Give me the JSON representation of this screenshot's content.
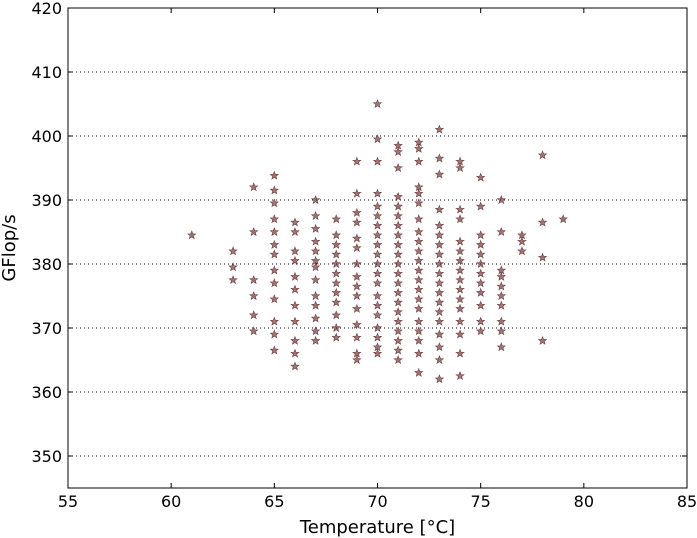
{
  "chart_data": {
    "type": "scatter",
    "title": "",
    "xlabel": "Temperature [°C]",
    "ylabel": "GFlop/s",
    "xlim": [
      55,
      85
    ],
    "ylim": [
      345,
      420
    ],
    "xticks": [
      55,
      60,
      65,
      70,
      75,
      80,
      85
    ],
    "yticks": [
      350,
      360,
      370,
      380,
      390,
      400,
      410,
      420
    ],
    "grid": "horizontal dotted",
    "marker": "star",
    "marker_color": "#5a1a1a",
    "series": [
      {
        "points": [
          [
            61,
            384.5
          ],
          [
            63,
            382.0
          ],
          [
            63,
            379.5
          ],
          [
            63,
            377.5
          ],
          [
            64,
            392.0
          ],
          [
            64,
            385.0
          ],
          [
            64,
            377.5
          ],
          [
            64,
            375.0
          ],
          [
            64,
            372.0
          ],
          [
            64,
            369.5
          ],
          [
            65,
            393.8
          ],
          [
            65,
            391.5
          ],
          [
            65,
            389.5
          ],
          [
            65,
            387.0
          ],
          [
            65,
            385.0
          ],
          [
            65,
            383.0
          ],
          [
            65,
            381.5
          ],
          [
            65,
            379.0
          ],
          [
            65,
            377.0
          ],
          [
            65,
            374.5
          ],
          [
            65,
            371.0
          ],
          [
            65,
            369.0
          ],
          [
            65,
            366.5
          ],
          [
            66,
            386.5
          ],
          [
            66,
            385.0
          ],
          [
            66,
            382.0
          ],
          [
            66,
            380.5
          ],
          [
            66,
            378.0
          ],
          [
            66,
            376.0
          ],
          [
            66,
            373.5
          ],
          [
            66,
            371.0
          ],
          [
            66,
            368.0
          ],
          [
            66,
            366.0
          ],
          [
            66,
            364.0
          ],
          [
            67,
            390.0
          ],
          [
            67,
            387.5
          ],
          [
            67,
            385.5
          ],
          [
            67,
            383.5
          ],
          [
            67,
            382.0
          ],
          [
            67,
            380.5
          ],
          [
            67,
            379.5
          ],
          [
            67,
            377.5
          ],
          [
            67,
            375.0
          ],
          [
            67,
            373.5
          ],
          [
            67,
            371.5
          ],
          [
            67,
            369.5
          ],
          [
            67,
            368.0
          ],
          [
            68,
            387.0
          ],
          [
            68,
            384.5
          ],
          [
            68,
            383.0
          ],
          [
            68,
            381.5
          ],
          [
            68,
            380.0
          ],
          [
            68,
            378.5
          ],
          [
            68,
            377.0
          ],
          [
            68,
            375.5
          ],
          [
            68,
            374.0
          ],
          [
            68,
            372.0
          ],
          [
            68,
            370.0
          ],
          [
            68,
            368.5
          ],
          [
            69,
            396.0
          ],
          [
            69,
            391.0
          ],
          [
            69,
            388.0
          ],
          [
            69,
            386.5
          ],
          [
            69,
            384.0
          ],
          [
            69,
            382.5
          ],
          [
            69,
            380.0
          ],
          [
            69,
            378.0
          ],
          [
            69,
            376.5
          ],
          [
            69,
            375.0
          ],
          [
            69,
            373.0
          ],
          [
            69,
            370.5
          ],
          [
            69,
            368.5
          ],
          [
            69,
            366.0
          ],
          [
            69,
            365.0
          ],
          [
            70,
            405.0
          ],
          [
            70,
            399.5
          ],
          [
            70,
            396.0
          ],
          [
            70,
            391.0
          ],
          [
            70,
            389.0
          ],
          [
            70,
            387.5
          ],
          [
            70,
            386.0
          ],
          [
            70,
            384.5
          ],
          [
            70,
            383.0
          ],
          [
            70,
            381.5
          ],
          [
            70,
            380.0
          ],
          [
            70,
            378.5
          ],
          [
            70,
            377.0
          ],
          [
            70,
            375.0
          ],
          [
            70,
            373.5
          ],
          [
            70,
            372.0
          ],
          [
            70,
            370.0
          ],
          [
            70,
            368.5
          ],
          [
            70,
            367.0
          ],
          [
            70,
            366.0
          ],
          [
            71,
            398.5
          ],
          [
            71,
            397.5
          ],
          [
            71,
            395.0
          ],
          [
            71,
            390.5
          ],
          [
            71,
            389.0
          ],
          [
            71,
            387.5
          ],
          [
            71,
            386.0
          ],
          [
            71,
            384.5
          ],
          [
            71,
            383.0
          ],
          [
            71,
            381.5
          ],
          [
            71,
            380.0
          ],
          [
            71,
            378.5
          ],
          [
            71,
            377.0
          ],
          [
            71,
            375.5
          ],
          [
            71,
            374.0
          ],
          [
            71,
            372.5
          ],
          [
            71,
            371.0
          ],
          [
            71,
            369.5
          ],
          [
            71,
            368.0
          ],
          [
            71,
            366.5
          ],
          [
            71,
            365.0
          ],
          [
            72,
            399.0
          ],
          [
            72,
            398.0
          ],
          [
            72,
            396.0
          ],
          [
            72,
            392.0
          ],
          [
            72,
            391.0
          ],
          [
            72,
            389.5
          ],
          [
            72,
            387.0
          ],
          [
            72,
            385.0
          ],
          [
            72,
            383.5
          ],
          [
            72,
            382.0
          ],
          [
            72,
            380.5
          ],
          [
            72,
            379.0
          ],
          [
            72,
            377.5
          ],
          [
            72,
            376.0
          ],
          [
            72,
            374.5
          ],
          [
            72,
            373.0
          ],
          [
            72,
            371.0
          ],
          [
            72,
            369.5
          ],
          [
            72,
            368.0
          ],
          [
            72,
            366.0
          ],
          [
            72,
            363.0
          ],
          [
            73,
            401.0
          ],
          [
            73,
            396.5
          ],
          [
            73,
            394.0
          ],
          [
            73,
            388.5
          ],
          [
            73,
            386.0
          ],
          [
            73,
            384.5
          ],
          [
            73,
            383.0
          ],
          [
            73,
            381.5
          ],
          [
            73,
            380.0
          ],
          [
            73,
            378.5
          ],
          [
            73,
            377.0
          ],
          [
            73,
            375.5
          ],
          [
            73,
            374.0
          ],
          [
            73,
            372.5
          ],
          [
            73,
            371.0
          ],
          [
            73,
            369.0
          ],
          [
            73,
            367.0
          ],
          [
            73,
            365.0
          ],
          [
            73,
            362.0
          ],
          [
            74,
            396.0
          ],
          [
            74,
            395.0
          ],
          [
            74,
            388.5
          ],
          [
            74,
            387.0
          ],
          [
            74,
            383.5
          ],
          [
            74,
            382.0
          ],
          [
            74,
            380.5
          ],
          [
            74,
            379.0
          ],
          [
            74,
            377.5
          ],
          [
            74,
            376.0
          ],
          [
            74,
            374.5
          ],
          [
            74,
            373.0
          ],
          [
            74,
            371.0
          ],
          [
            74,
            369.0
          ],
          [
            74,
            366.0
          ],
          [
            74,
            362.5
          ],
          [
            75,
            393.5
          ],
          [
            75,
            389.0
          ],
          [
            75,
            384.5
          ],
          [
            75,
            383.0
          ],
          [
            75,
            381.5
          ],
          [
            75,
            380.0
          ],
          [
            75,
            378.5
          ],
          [
            75,
            377.0
          ],
          [
            75,
            375.5
          ],
          [
            75,
            373.5
          ],
          [
            75,
            371.0
          ],
          [
            75,
            369.5
          ],
          [
            76,
            390.0
          ],
          [
            76,
            385.0
          ],
          [
            76,
            379.0
          ],
          [
            76,
            378.0
          ],
          [
            76,
            376.5
          ],
          [
            76,
            375.0
          ],
          [
            76,
            373.5
          ],
          [
            76,
            371.0
          ],
          [
            76,
            369.5
          ],
          [
            76,
            367.0
          ],
          [
            77,
            384.5
          ],
          [
            77,
            383.5
          ],
          [
            77,
            382.0
          ],
          [
            78,
            397.0
          ],
          [
            78,
            386.5
          ],
          [
            78,
            381.0
          ],
          [
            78,
            368.0
          ],
          [
            79,
            387.0
          ]
        ]
      }
    ]
  }
}
